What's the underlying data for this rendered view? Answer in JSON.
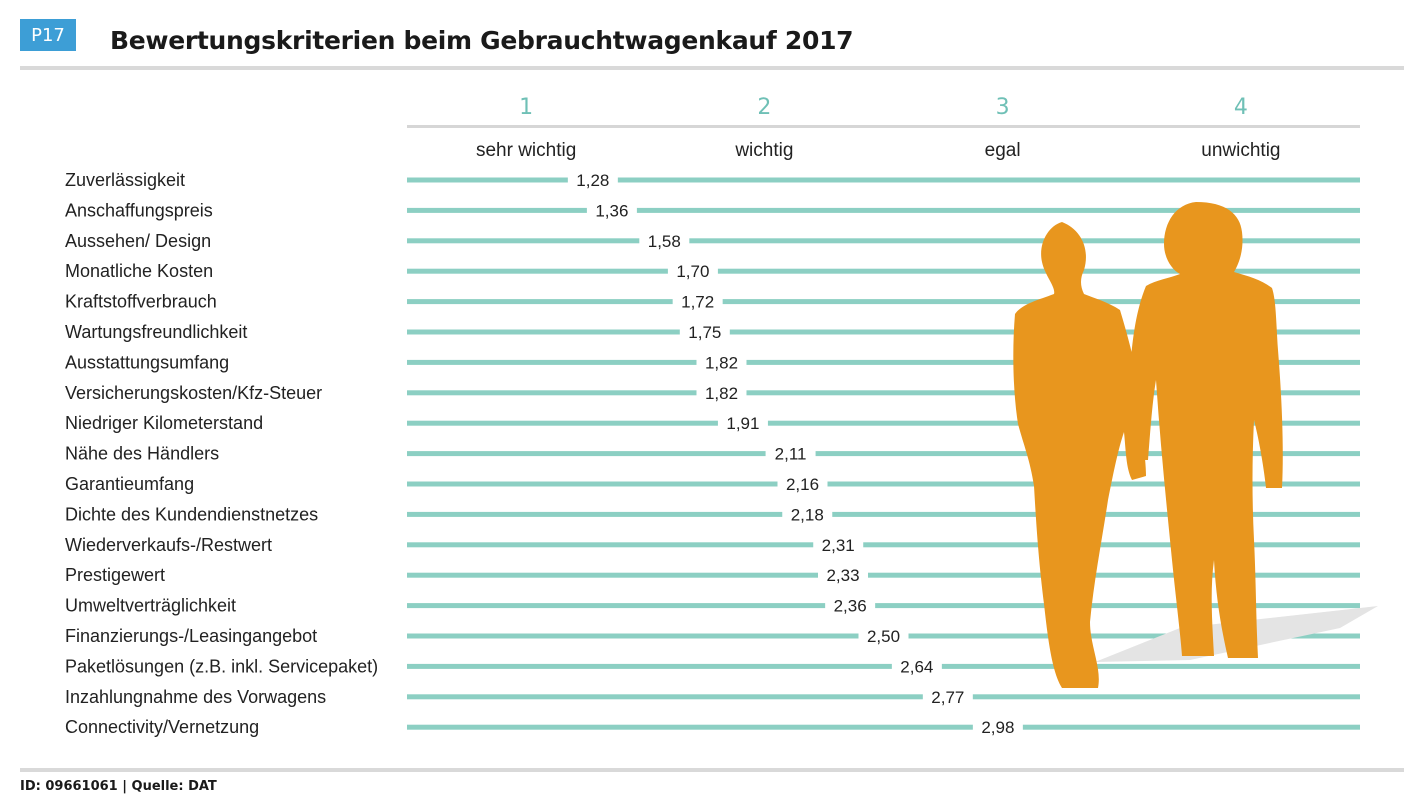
{
  "header": {
    "badge": "P17",
    "title": "Bewertungskriterien beim Gebrauchtwagenkauf 2017"
  },
  "footer": {
    "text": "ID: 09661061 | Quelle: DAT"
  },
  "colors": {
    "bar": "#8ccfc3",
    "scale_numbers": "#6fc0b6",
    "silhouette": "#e8961e",
    "shadow": "#e4e4e4",
    "badge": "#3d9ed6"
  },
  "illustration": {
    "icon": "walking-couple-silhouette-icon"
  },
  "chart_data": {
    "type": "scatter",
    "scale": {
      "min": 1,
      "max": 4,
      "ticks": [
        "1",
        "2",
        "3",
        "4"
      ],
      "tick_labels": [
        "sehr wichtig",
        "wichtig",
        "egal",
        "unwichtig"
      ]
    },
    "categories": [
      "Zuverlässigkeit",
      "Anschaffungspreis",
      "Aussehen/ Design",
      "Monatliche Kosten",
      "Kraftstoffverbrauch",
      "Wartungsfreundlichkeit",
      "Ausstattungsumfang",
      "Versicherungskosten/Kfz-Steuer",
      "Niedriger Kilometerstand",
      "Nähe des Händlers",
      "Garantieumfang",
      "Dichte des Kundendienstnetzes",
      "Wiederverkaufs-/Restwert",
      "Prestigewert",
      "Umweltverträglichkeit",
      "Finanzierungs-/Leasingangebot",
      "Paketlösungen (z.B. inkl. Servicepaket)",
      "Inzahlungnahme des Vorwagens",
      "Connectivity/Vernetzung"
    ],
    "values": [
      1.28,
      1.36,
      1.58,
      1.7,
      1.72,
      1.75,
      1.82,
      1.82,
      1.91,
      2.11,
      2.16,
      2.18,
      2.31,
      2.33,
      2.36,
      2.5,
      2.64,
      2.77,
      2.98
    ],
    "value_labels": [
      "1,28",
      "1,36",
      "1,58",
      "1,70",
      "1,72",
      "1,75",
      "1,82",
      "1,82",
      "1,91",
      "2,11",
      "2,16",
      "2,18",
      "2,31",
      "2,33",
      "2,36",
      "2,50",
      "2,64",
      "2,77",
      "2,98"
    ]
  }
}
